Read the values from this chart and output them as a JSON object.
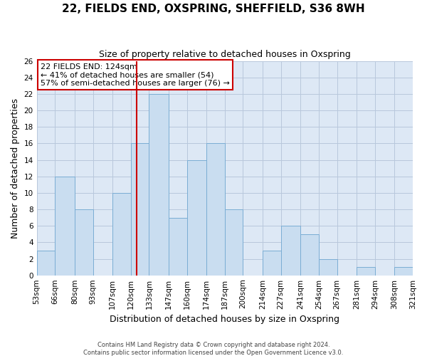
{
  "title": "22, FIELDS END, OXSPRING, SHEFFIELD, S36 8WH",
  "subtitle": "Size of property relative to detached houses in Oxspring",
  "xlabel": "Distribution of detached houses by size in Oxspring",
  "ylabel": "Number of detached properties",
  "bin_edges": [
    53,
    66,
    80,
    93,
    107,
    120,
    133,
    147,
    160,
    174,
    187,
    200,
    214,
    227,
    241,
    254,
    267,
    281,
    294,
    308,
    321
  ],
  "counts": [
    3,
    12,
    8,
    0,
    10,
    16,
    22,
    7,
    14,
    16,
    8,
    0,
    3,
    6,
    5,
    2,
    0,
    1,
    0,
    1
  ],
  "bar_color": "#c9ddf0",
  "bar_edge_color": "#7aadd4",
  "vline_x": 124,
  "vline_color": "#cc0000",
  "ylim": [
    0,
    26
  ],
  "yticks": [
    0,
    2,
    4,
    6,
    8,
    10,
    12,
    14,
    16,
    18,
    20,
    22,
    24,
    26
  ],
  "annotation_title": "22 FIELDS END: 124sqm",
  "annotation_line1": "← 41% of detached houses are smaller (54)",
  "annotation_line2": "57% of semi-detached houses are larger (76) →",
  "annotation_box_facecolor": "#ffffff",
  "annotation_box_edgecolor": "#cc0000",
  "footer_line1": "Contains HM Land Registry data © Crown copyright and database right 2024.",
  "footer_line2": "Contains public sector information licensed under the Open Government Licence v3.0.",
  "fig_facecolor": "#ffffff",
  "ax_facecolor": "#dde8f5",
  "grid_color": "#b8c8dc",
  "title_fontsize": 11,
  "subtitle_fontsize": 9,
  "tick_fontsize": 7.5,
  "ylabel_fontsize": 9,
  "xlabel_fontsize": 9
}
